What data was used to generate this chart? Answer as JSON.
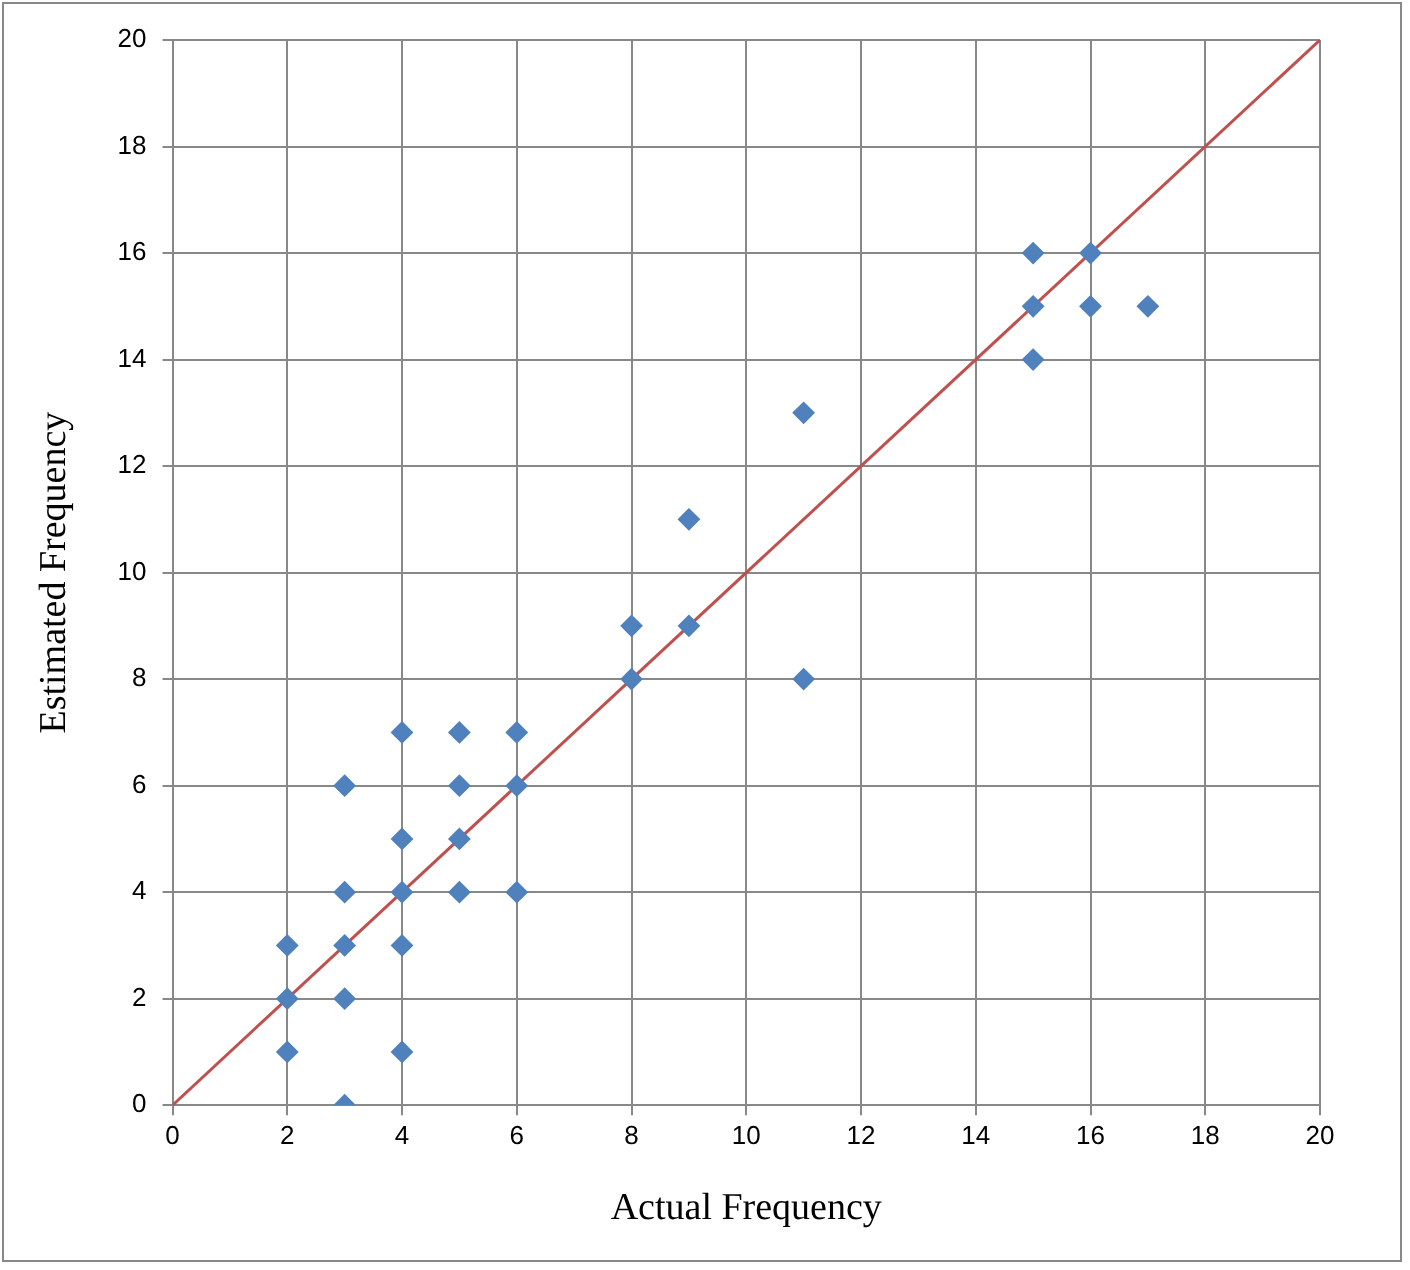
{
  "chart_data": {
    "type": "scatter",
    "xlabel": "Actual Frequency",
    "ylabel": "Estimated Frequency",
    "xlim": [
      0,
      20
    ],
    "xticks": [
      0,
      2,
      4,
      6,
      8,
      10,
      12,
      14,
      16,
      18,
      20
    ],
    "ylim": [
      0,
      20
    ],
    "yticks": [
      0,
      2,
      4,
      6,
      8,
      10,
      12,
      14,
      16,
      18,
      20
    ],
    "grid": true,
    "legend": false,
    "marker": "diamond",
    "series": [
      {
        "type": "scatter",
        "color": "#4f81bd",
        "x": [
          2,
          2,
          2,
          3,
          3,
          3,
          3,
          3,
          4,
          4,
          4,
          4,
          4,
          5,
          5,
          5,
          5,
          6,
          6,
          6,
          8,
          8,
          9,
          9,
          11,
          11,
          15,
          15,
          15,
          16,
          16,
          17
        ],
        "values": [
          3,
          2,
          1,
          6,
          4,
          3,
          2,
          0,
          7,
          5,
          4,
          3,
          1,
          7,
          6,
          5,
          4,
          7,
          6,
          4,
          9,
          8,
          11,
          9,
          13,
          8,
          16,
          15,
          14,
          16,
          15,
          15
        ]
      },
      {
        "type": "line",
        "color": "#c0504d",
        "x": [
          0,
          20
        ],
        "values": [
          0,
          20
        ],
        "marker": "none",
        "line_style": "solid"
      }
    ]
  }
}
